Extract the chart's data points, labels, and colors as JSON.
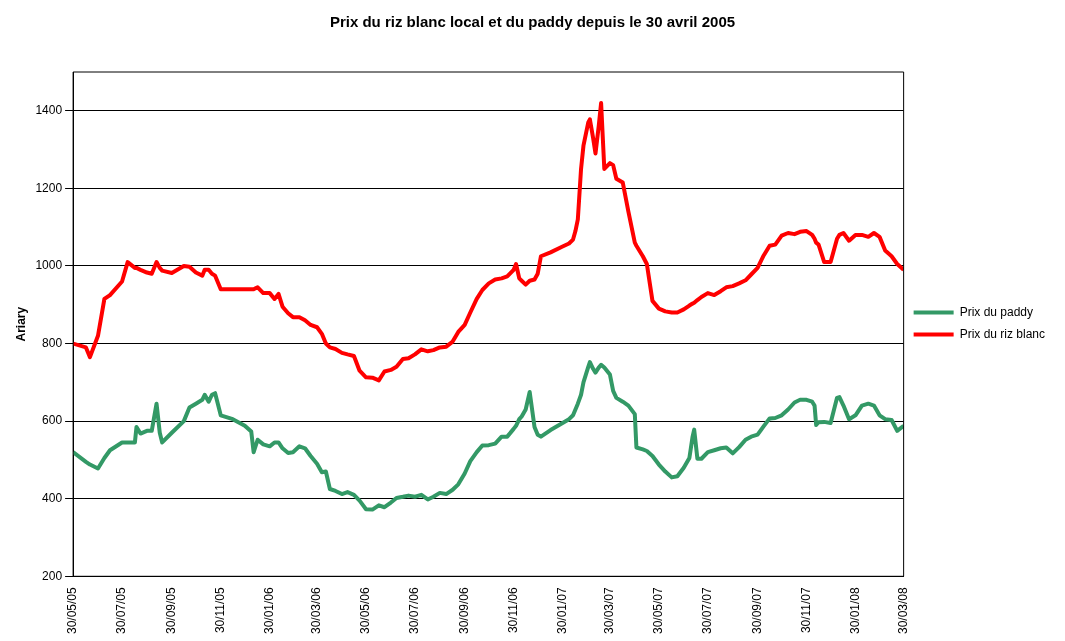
{
  "chart_data": {
    "type": "line",
    "title": "Prix du riz blanc local et du paddy depuis le 30 avril 2005",
    "ylabel": "Ariary",
    "x": [
      "2005-05-30",
      "2005-06-15",
      "2005-06-20",
      "2005-06-30",
      "2005-07-08",
      "2005-07-15",
      "2005-07-30",
      "2005-08-06",
      "2005-08-15",
      "2005-08-17",
      "2005-08-22",
      "2005-08-30",
      "2005-09-05",
      "2005-09-11",
      "2005-09-15",
      "2005-09-18",
      "2005-09-30",
      "2005-10-15",
      "2005-10-22",
      "2005-10-30",
      "2005-11-07",
      "2005-11-10",
      "2005-11-15",
      "2005-11-19",
      "2005-11-23",
      "2005-11-30",
      "2005-12-15",
      "2005-12-30",
      "2006-01-07",
      "2006-01-10",
      "2006-01-15",
      "2006-01-22",
      "2006-01-30",
      "2006-02-05",
      "2006-02-10",
      "2006-02-15",
      "2006-02-22",
      "2006-02-28",
      "2006-03-08",
      "2006-03-15",
      "2006-03-22",
      "2006-03-30",
      "2006-04-05",
      "2006-04-10",
      "2006-04-15",
      "2006-04-22",
      "2006-04-30",
      "2006-05-07",
      "2006-05-15",
      "2006-05-22",
      "2006-05-30",
      "2006-06-07",
      "2006-06-15",
      "2006-06-22",
      "2006-06-30",
      "2006-07-07",
      "2006-07-15",
      "2006-07-22",
      "2006-07-30",
      "2006-08-07",
      "2006-08-15",
      "2006-08-22",
      "2006-08-30",
      "2006-09-07",
      "2006-09-15",
      "2006-09-22",
      "2006-09-30",
      "2006-10-07",
      "2006-10-15",
      "2006-10-22",
      "2006-10-30",
      "2006-11-07",
      "2006-11-15",
      "2006-11-22",
      "2006-11-30",
      "2006-12-03",
      "2006-12-07",
      "2006-12-10",
      "2006-12-15",
      "2006-12-20",
      "2006-12-26",
      "2006-12-30",
      "2007-01-03",
      "2007-01-15",
      "2007-01-30",
      "2007-02-07",
      "2007-02-12",
      "2007-02-15",
      "2007-02-18",
      "2007-02-22",
      "2007-02-25",
      "2007-03-03",
      "2007-03-05",
      "2007-03-09",
      "2007-03-12",
      "2007-03-16",
      "2007-03-19",
      "2007-03-23",
      "2007-03-30",
      "2007-04-03",
      "2007-04-07",
      "2007-04-15",
      "2007-04-22",
      "2007-04-30",
      "2007-05-02",
      "2007-05-10",
      "2007-05-15",
      "2007-05-22",
      "2007-05-30",
      "2007-06-07",
      "2007-06-15",
      "2007-06-22",
      "2007-06-30",
      "2007-07-07",
      "2007-07-11",
      "2007-07-13",
      "2007-07-17",
      "2007-07-22",
      "2007-07-30",
      "2007-08-07",
      "2007-08-15",
      "2007-08-22",
      "2007-08-30",
      "2007-09-07",
      "2007-09-15",
      "2007-09-22",
      "2007-09-30",
      "2007-10-07",
      "2007-10-15",
      "2007-10-22",
      "2007-10-30",
      "2007-11-07",
      "2007-11-15",
      "2007-11-22",
      "2007-11-30",
      "2007-12-07",
      "2007-12-10",
      "2007-12-12",
      "2007-12-15",
      "2007-12-22",
      "2007-12-30",
      "2008-01-07",
      "2008-01-10",
      "2008-01-15",
      "2008-01-22",
      "2008-01-30",
      "2008-02-07",
      "2008-02-15",
      "2008-02-22",
      "2008-02-29",
      "2008-03-07",
      "2008-03-15",
      "2008-03-22",
      "2008-03-30"
    ],
    "series": [
      {
        "name": "Prix du paddy",
        "color": "#339966",
        "values": [
          520,
          495,
          488,
          478,
          505,
          525,
          545,
          545,
          545,
          585,
          568,
          575,
          575,
          645,
          570,
          545,
          570,
          600,
          635,
          645,
          655,
          668,
          650,
          668,
          672,
          615,
          605,
          588,
          573,
          520,
          552,
          540,
          535,
          545,
          545,
          530,
          518,
          520,
          535,
          530,
          510,
          490,
          468,
          470,
          425,
          420,
          412,
          417,
          410,
          395,
          373,
          372,
          383,
          378,
          390,
          402,
          405,
          408,
          405,
          410,
          398,
          405,
          415,
          412,
          423,
          437,
          465,
          497,
          520,
          537,
          538,
          542,
          560,
          560,
          580,
          588,
          605,
          612,
          630,
          675,
          585,
          565,
          560,
          577,
          595,
          605,
          615,
          630,
          645,
          668,
          700,
          740,
          752,
          735,
          725,
          738,
          745,
          738,
          720,
          678,
          660,
          650,
          640,
          618,
          532,
          527,
          523,
          510,
          488,
          470,
          455,
          458,
          480,
          505,
          560,
          578,
          503,
          503,
          520,
          525,
          530,
          532,
          517,
          533,
          552,
          560,
          565,
          585,
          607,
          608,
          615,
          630,
          648,
          655,
          655,
          650,
          640,
          590,
          597,
          598,
          595,
          660,
          662,
          640,
          605,
          615,
          640,
          645,
          640,
          615,
          605,
          603,
          575,
          588
        ]
      },
      {
        "name": "Prix du riz blanc",
        "color": "#ff0000",
        "values": [
          800,
          790,
          765,
          820,
          915,
          925,
          960,
          1010,
          995,
          995,
          990,
          983,
          980,
          1010,
          995,
          988,
          982,
          1000,
          998,
          983,
          975,
          990,
          990,
          980,
          975,
          940,
          940,
          940,
          940,
          940,
          945,
          930,
          930,
          915,
          928,
          895,
          878,
          868,
          868,
          860,
          848,
          842,
          825,
          800,
          790,
          786,
          776,
          772,
          768,
          730,
          713,
          712,
          705,
          728,
          732,
          740,
          760,
          762,
          772,
          785,
          780,
          783,
          790,
          792,
          805,
          830,
          848,
          880,
          915,
          938,
          955,
          965,
          968,
          973,
          990,
          1005,
          968,
          962,
          952,
          962,
          965,
          980,
          1025,
          1035,
          1050,
          1058,
          1068,
          1090,
          1120,
          1250,
          1310,
          1370,
          1378,
          1330,
          1290,
          1360,
          1420,
          1250,
          1265,
          1260,
          1225,
          1215,
          1140,
          1060,
          1052,
          1025,
          1005,
          910,
          890,
          883,
          880,
          880,
          888,
          898,
          903,
          905,
          912,
          920,
          930,
          925,
          935,
          945,
          948,
          955,
          963,
          978,
          995,
          1025,
          1052,
          1055,
          1078,
          1085,
          1082,
          1088,
          1090,
          1080,
          1070,
          1060,
          1055,
          1010,
          1010,
          1070,
          1080,
          1085,
          1065,
          1080,
          1080,
          1075,
          1085,
          1075,
          1040,
          1025,
          1005,
          990
        ]
      }
    ],
    "xlim": [
      "2005-05-30",
      "2008-03-30"
    ],
    "xticks": [
      {
        "value": "2005-05-30",
        "label": "30/05/05"
      },
      {
        "value": "2005-07-30",
        "label": "30/07/05"
      },
      {
        "value": "2005-09-30",
        "label": "30/09/05"
      },
      {
        "value": "2005-11-30",
        "label": "30/11/05"
      },
      {
        "value": "2006-01-30",
        "label": "30/01/06"
      },
      {
        "value": "2006-03-30",
        "label": "30/03/06"
      },
      {
        "value": "2006-05-30",
        "label": "30/05/06"
      },
      {
        "value": "2006-07-30",
        "label": "30/07/06"
      },
      {
        "value": "2006-09-30",
        "label": "30/09/06"
      },
      {
        "value": "2006-11-30",
        "label": "30/11/06"
      },
      {
        "value": "2007-01-30",
        "label": "30/01/07"
      },
      {
        "value": "2007-03-30",
        "label": "30/03/07"
      },
      {
        "value": "2007-05-30",
        "label": "30/05/07"
      },
      {
        "value": "2007-07-30",
        "label": "30/07/07"
      },
      {
        "value": "2007-09-30",
        "label": "30/09/07"
      },
      {
        "value": "2007-11-30",
        "label": "30/11/07"
      },
      {
        "value": "2008-01-30",
        "label": "30/01/08"
      },
      {
        "value": "2008-03-30",
        "label": "30/03/08"
      }
    ],
    "ylim": [
      200,
      1500
    ],
    "yticks": [
      200,
      400,
      600,
      800,
      1000,
      1200,
      1400
    ],
    "grid": "y",
    "legend": "right"
  }
}
